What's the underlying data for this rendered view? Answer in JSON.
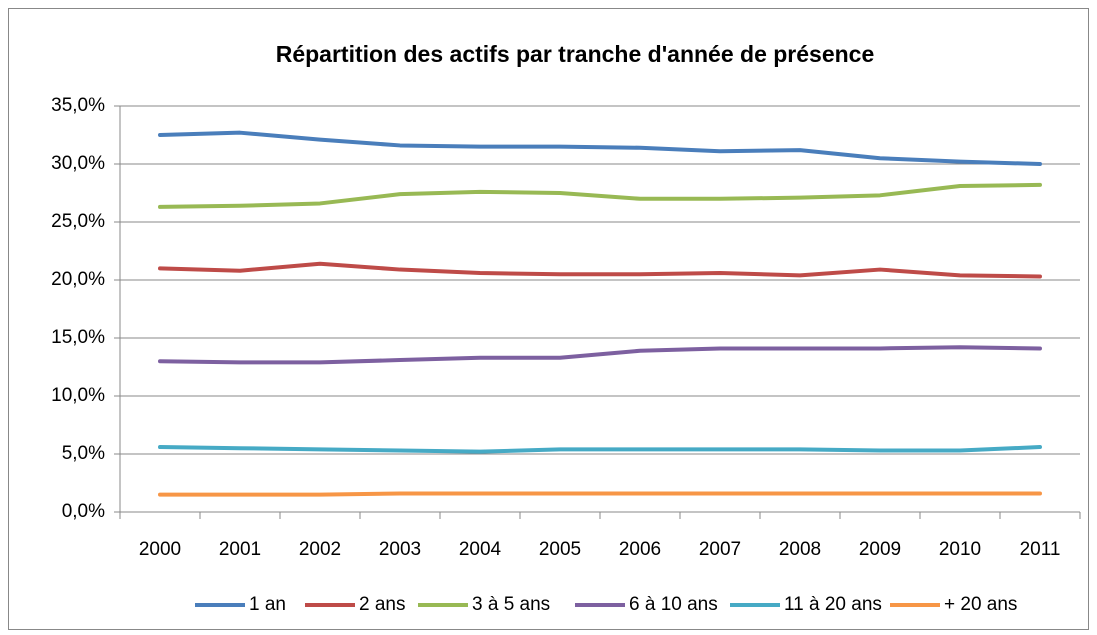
{
  "chart_data": {
    "type": "line",
    "title": "Répartition des actifs par tranche d'année de présence",
    "categories": [
      "2000",
      "2001",
      "2002",
      "2003",
      "2004",
      "2005",
      "2006",
      "2007",
      "2008",
      "2009",
      "2010",
      "2011"
    ],
    "series": [
      {
        "name": "1 an",
        "color": "#4a7ebb",
        "values": [
          32.5,
          32.7,
          32.1,
          31.6,
          31.5,
          31.5,
          31.4,
          31.1,
          31.2,
          30.5,
          30.2,
          30.0
        ]
      },
      {
        "name": "2 ans",
        "color": "#be4b48",
        "values": [
          21.0,
          20.8,
          21.4,
          20.9,
          20.6,
          20.5,
          20.5,
          20.6,
          20.4,
          20.9,
          20.4,
          20.3
        ]
      },
      {
        "name": "3 à 5 ans",
        "color": "#98b954",
        "values": [
          26.3,
          26.4,
          26.6,
          27.4,
          27.6,
          27.5,
          27.0,
          27.0,
          27.1,
          27.3,
          28.1,
          28.2
        ]
      },
      {
        "name": "6 à 10 ans",
        "color": "#7d60a0",
        "values": [
          13.0,
          12.9,
          12.9,
          13.1,
          13.3,
          13.3,
          13.9,
          14.1,
          14.1,
          14.1,
          14.2,
          14.1
        ]
      },
      {
        "name": "11 à 20 ans",
        "color": "#46aac5",
        "values": [
          5.6,
          5.5,
          5.4,
          5.3,
          5.2,
          5.4,
          5.4,
          5.4,
          5.4,
          5.3,
          5.3,
          5.6
        ]
      },
      {
        "name": "+ 20 ans",
        "color": "#f79646",
        "values": [
          1.5,
          1.5,
          1.5,
          1.6,
          1.6,
          1.6,
          1.6,
          1.6,
          1.6,
          1.6,
          1.6,
          1.6
        ]
      }
    ],
    "ylim": [
      0,
      35
    ],
    "yticks": [
      {
        "value": 0,
        "label": "0,0%"
      },
      {
        "value": 5,
        "label": "5,0%"
      },
      {
        "value": 10,
        "label": "10,0%"
      },
      {
        "value": 15,
        "label": "15,0%"
      },
      {
        "value": 20,
        "label": "20,0%"
      },
      {
        "value": 25,
        "label": "25,0%"
      },
      {
        "value": 30,
        "label": "30,0%"
      },
      {
        "value": 35,
        "label": "35,0%"
      }
    ],
    "grid": true,
    "legend": "bottom"
  }
}
